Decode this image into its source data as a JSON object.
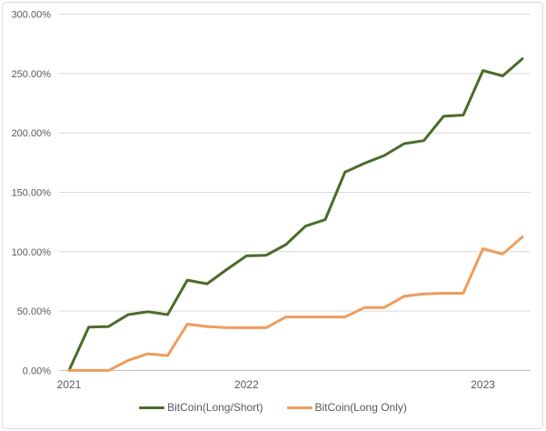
{
  "chart_data": {
    "type": "line",
    "title": "",
    "xlabel": "",
    "ylabel": "",
    "ylim": [
      0,
      300
    ],
    "grid": "horizontal",
    "legend_position": "bottom-center",
    "y_ticks": [
      0,
      50,
      100,
      150,
      200,
      250,
      300
    ],
    "y_tick_labels": [
      "0.00%",
      "50.00%",
      "100.00%",
      "150.00%",
      "200.00%",
      "250.00%",
      "300.00%"
    ],
    "x_ticks": [
      {
        "label": "2021",
        "point": 0
      },
      {
        "label": "2022",
        "point": 9
      },
      {
        "label": "2023",
        "point": 21
      }
    ],
    "num_points": 24,
    "series": [
      {
        "name": "BitCoin(Long/Short)",
        "color": "#4B6B2A",
        "values": [
          0,
          36.5,
          37,
          47,
          49.5,
          47,
          76,
          73,
          85,
          96.5,
          97,
          106,
          121.5,
          127,
          167,
          174.5,
          181,
          191,
          193.5,
          214,
          215,
          252.5,
          248,
          262.5
        ]
      },
      {
        "name": "BitCoin(Long Only)",
        "color": "#EE9C5D",
        "values": [
          0,
          0,
          0,
          8.5,
          14,
          12.5,
          39,
          37,
          36,
          36,
          36,
          45,
          45,
          45,
          45,
          53,
          53,
          62.5,
          64.5,
          65,
          65,
          102.5,
          98,
          112.5
        ]
      }
    ],
    "colors": {
      "gridline": "#D9D9D9",
      "axis_line": "#BFBFBF",
      "tick_text": "#595959",
      "frame_border": "#D9D9D9",
      "background": "#FFFFFF"
    }
  }
}
